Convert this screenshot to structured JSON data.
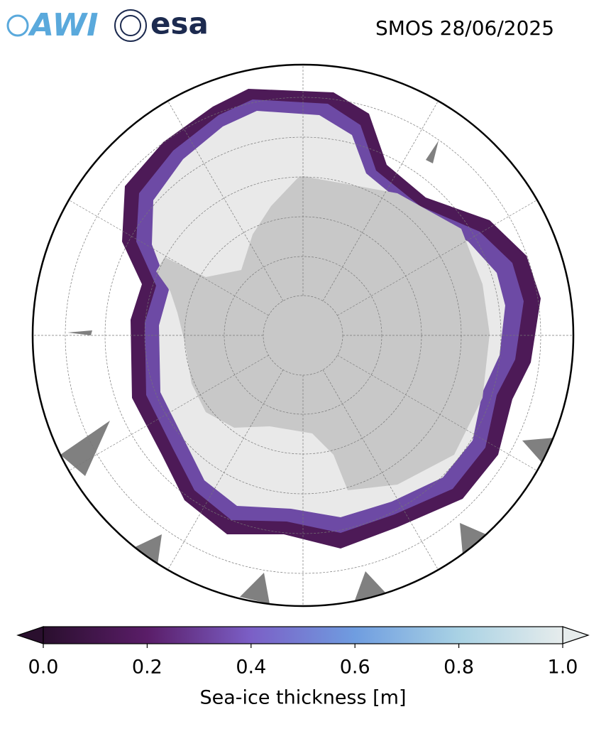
{
  "logos": {
    "awi": "AWI",
    "esa": "esa"
  },
  "header": {
    "title": "SMOS 28/06/2025"
  },
  "colorbar": {
    "label": "Sea-ice thickness [m]",
    "range": [
      0,
      1
    ],
    "ticks": [
      {
        "value": 0,
        "label": "0.0"
      },
      {
        "value": 0.2,
        "label": "0.2"
      },
      {
        "value": 0.4,
        "label": "0.4"
      },
      {
        "value": 0.6,
        "label": "0.6"
      },
      {
        "value": 0.8,
        "label": "0.8"
      },
      {
        "value": 1,
        "label": "1.0"
      }
    ],
    "colors": [
      "#2a0f2e",
      "#5a1d68",
      "#7b5fc6",
      "#6f9de0",
      "#a9d2e4",
      "#e6ecec"
    ],
    "extend": "both"
  }
}
